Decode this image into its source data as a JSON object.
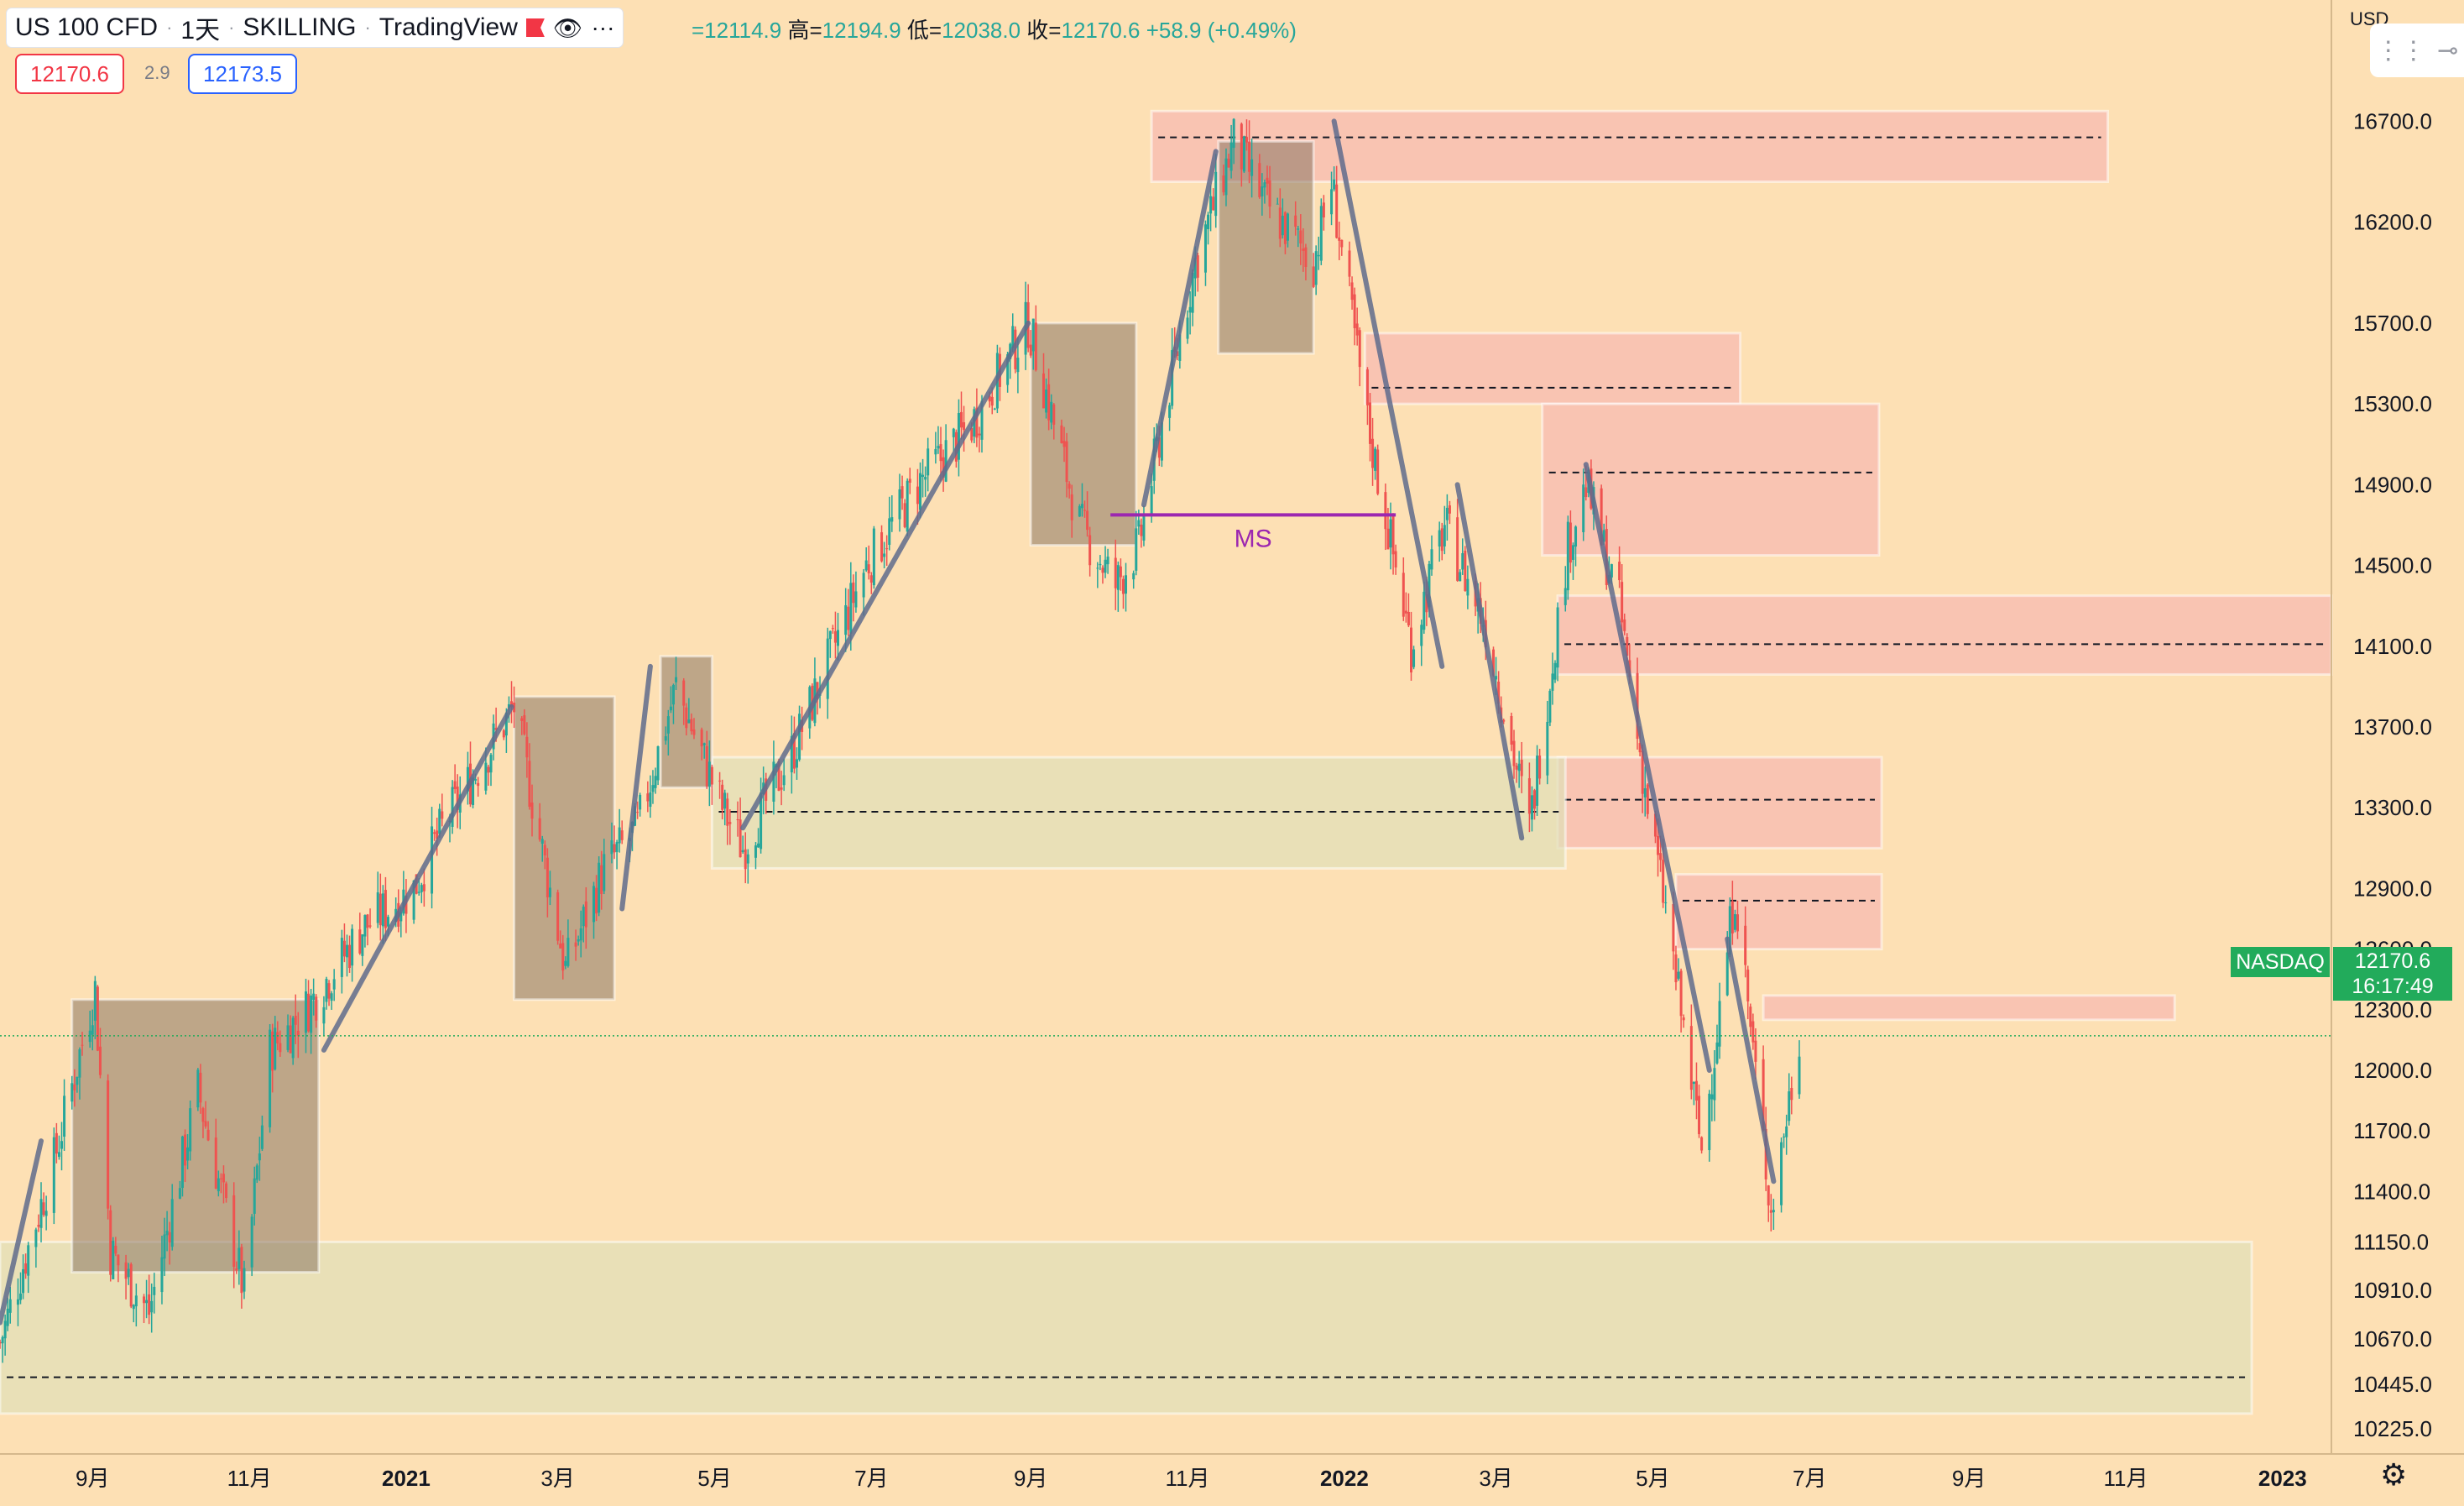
{
  "legend": {
    "symbol": "US 100 CFD",
    "interval": "1天",
    "author": "SKILLING",
    "platform": "TradingView",
    "flag_icon": "red-flag-icon",
    "eye_icon": "eye-icon",
    "more_icon": "more-dots-icon"
  },
  "ohlc": {
    "open_value": "=12114.9",
    "high_label": "高=",
    "high_value": "12194.9",
    "low_label": "低=",
    "low_value": "12038.0",
    "close_label": "收=",
    "close_value": "12170.6",
    "change": "+58.9 (+0.49%)"
  },
  "quote": {
    "bid": "12170.6",
    "spread": "2.9",
    "ask": "12173.5"
  },
  "colors": {
    "up": "#26a69a",
    "down": "#ef5350",
    "background": "#fde0b4",
    "box": "#8a7764",
    "trend": "#5f6b8c",
    "supply": "#f7b8b0",
    "demand": "#dfe0b8",
    "ms": "#9c27b0",
    "last": "#22ab5b"
  },
  "tools": {
    "drag_icon": "drag-handle-icon",
    "pin_icon": "crosshair-icon"
  },
  "last_price": {
    "exchange_tag": "NASDAQ",
    "price": "12170.6",
    "countdown": "16:17:49"
  },
  "currency": "USD",
  "settings_icon": "gear-icon",
  "chart_data": {
    "type": "line",
    "title": "",
    "xlabel": "",
    "ylabel": "",
    "x_ticks": [
      "9月",
      "11月",
      "2021",
      "3月",
      "5月",
      "7月",
      "9月",
      "11月",
      "2022",
      "3月",
      "5月",
      "7月",
      "9月",
      "11月",
      "2023"
    ],
    "y_ticks": [
      "16700.0",
      "16200.0",
      "15700.0",
      "15300.0",
      "14900.0",
      "14500.0",
      "14100.0",
      "13700.0",
      "13300.0",
      "12900.0",
      "12600.0",
      "12300.0",
      "12000.0",
      "11700.0",
      "11400.0",
      "11150.0",
      "10910.0",
      "10670.0",
      "10445.0",
      "10225.0"
    ],
    "ylim": [
      10100,
      17300
    ],
    "xlim": [
      "2020-07-27",
      "2023-01-20"
    ],
    "series": [
      {
        "type": "candlestick",
        "x": [
          "2020-07-27",
          "2020-08-17",
          "2020-09-02",
          "2020-09-08",
          "2020-09-23",
          "2020-10-12",
          "2020-10-30",
          "2020-11-09",
          "2020-11-23",
          "2020-12-15",
          "2021-01-04",
          "2021-01-15",
          "2021-02-12",
          "2021-03-04",
          "2021-03-19",
          "2021-04-01",
          "2021-04-16",
          "2021-05-04",
          "2021-05-12",
          "2021-06-01",
          "2021-06-29",
          "2021-07-19",
          "2021-08-09",
          "2021-08-31",
          "2021-09-20",
          "2021-10-04",
          "2021-10-13",
          "2021-10-22",
          "2021-11-04",
          "2021-11-19",
          "2021-12-01",
          "2021-12-20",
          "2021-12-27",
          "2022-01-10",
          "2022-01-27",
          "2022-02-09",
          "2022-02-25",
          "2022-03-14",
          "2022-03-29",
          "2022-04-05",
          "2022-04-18",
          "2022-04-29",
          "2022-05-06",
          "2022-05-20",
          "2022-06-02",
          "2022-06-16",
          "2022-06-27"
        ],
        "values": [
          10650,
          11550,
          12400,
          11100,
          10800,
          11900,
          10900,
          12100,
          12300,
          12700,
          12900,
          13200,
          13800,
          12500,
          13000,
          13200,
          13900,
          13300,
          13100,
          13600,
          14500,
          14900,
          15200,
          15700,
          14700,
          14400,
          14600,
          15200,
          16000,
          16600,
          16300,
          16000,
          16400,
          15200,
          14100,
          14700,
          14200,
          13200,
          14600,
          14900,
          14300,
          13300,
          12800,
          11600,
          12900,
          11300,
          12170
        ]
      }
    ],
    "trend_lines": [
      [
        [
          "2020-07-27",
          10750
        ],
        [
          "2020-08-12",
          11650
        ]
      ],
      [
        [
          "2020-11-30",
          12100
        ],
        [
          "2021-02-11",
          13800
        ]
      ],
      [
        [
          "2021-03-26",
          12800
        ],
        [
          "2021-04-06",
          14000
        ]
      ],
      [
        [
          "2021-05-12",
          13200
        ],
        [
          "2021-08-31",
          15700
        ]
      ],
      [
        [
          "2021-10-15",
          14800
        ],
        [
          "2021-11-12",
          16550
        ]
      ],
      [
        [
          "2021-12-28",
          16700
        ],
        [
          "2022-02-08",
          14000
        ]
      ],
      [
        [
          "2022-02-14",
          14900
        ],
        [
          "2022-03-11",
          13150
        ]
      ],
      [
        [
          "2022-04-05",
          15000
        ],
        [
          "2022-05-23",
          12000
        ]
      ],
      [
        [
          "2022-05-30",
          12650
        ],
        [
          "2022-06-17",
          11450
        ]
      ]
    ],
    "boxes": [
      {
        "x0": "2020-08-24",
        "x1": "2020-11-28",
        "y0": 11000,
        "y1": 12350
      },
      {
        "x0": "2021-02-12",
        "x1": "2021-03-23",
        "y0": 12350,
        "y1": 13850
      },
      {
        "x0": "2021-04-10",
        "x1": "2021-04-30",
        "y0": 13400,
        "y1": 14050
      },
      {
        "x0": "2021-09-01",
        "x1": "2021-10-12",
        "y0": 14600,
        "y1": 15700
      },
      {
        "x0": "2021-11-13",
        "x1": "2021-12-20",
        "y0": 15550,
        "y1": 16600
      }
    ],
    "supply_zones": [
      {
        "x0": "2021-10-18",
        "x1": "2022-10-25",
        "y0": 16400,
        "y1": 16750,
        "mid": 16620
      },
      {
        "x0": "2022-01-09",
        "x1": "2022-06-04",
        "y0": 15300,
        "y1": 15650,
        "mid": 15380
      },
      {
        "x0": "2022-03-19",
        "x1": "2022-07-28",
        "y0": 14550,
        "y1": 15300,
        "mid": 14960
      },
      {
        "x0": "2022-03-25",
        "x1": "2023-01-20",
        "y0": 13960,
        "y1": 14350,
        "mid": 14110
      },
      {
        "x0": "2022-03-25",
        "x1": "2022-07-29",
        "y0": 13100,
        "y1": 13550,
        "mid": 13340
      },
      {
        "x0": "2022-05-10",
        "x1": "2022-07-29",
        "y0": 12600,
        "y1": 12970,
        "mid": 12840
      },
      {
        "x0": "2022-06-13",
        "x1": "2022-11-20",
        "y0": 12250,
        "y1": 12370,
        "mid": null
      }
    ],
    "demand_zones": [
      {
        "x0": "2021-04-30",
        "x1": "2022-03-28",
        "y0": 13000,
        "y1": 13550,
        "mid": 13280
      },
      {
        "x0": "2020-07-27",
        "x1": "2022-12-20",
        "y0": 10300,
        "y1": 11150,
        "mid": 10480
      }
    ],
    "ms_line": {
      "x0": "2021-10-02",
      "x1": "2022-01-21",
      "y": 14750,
      "label": "MS"
    },
    "last_price_line": 12170.6
  }
}
